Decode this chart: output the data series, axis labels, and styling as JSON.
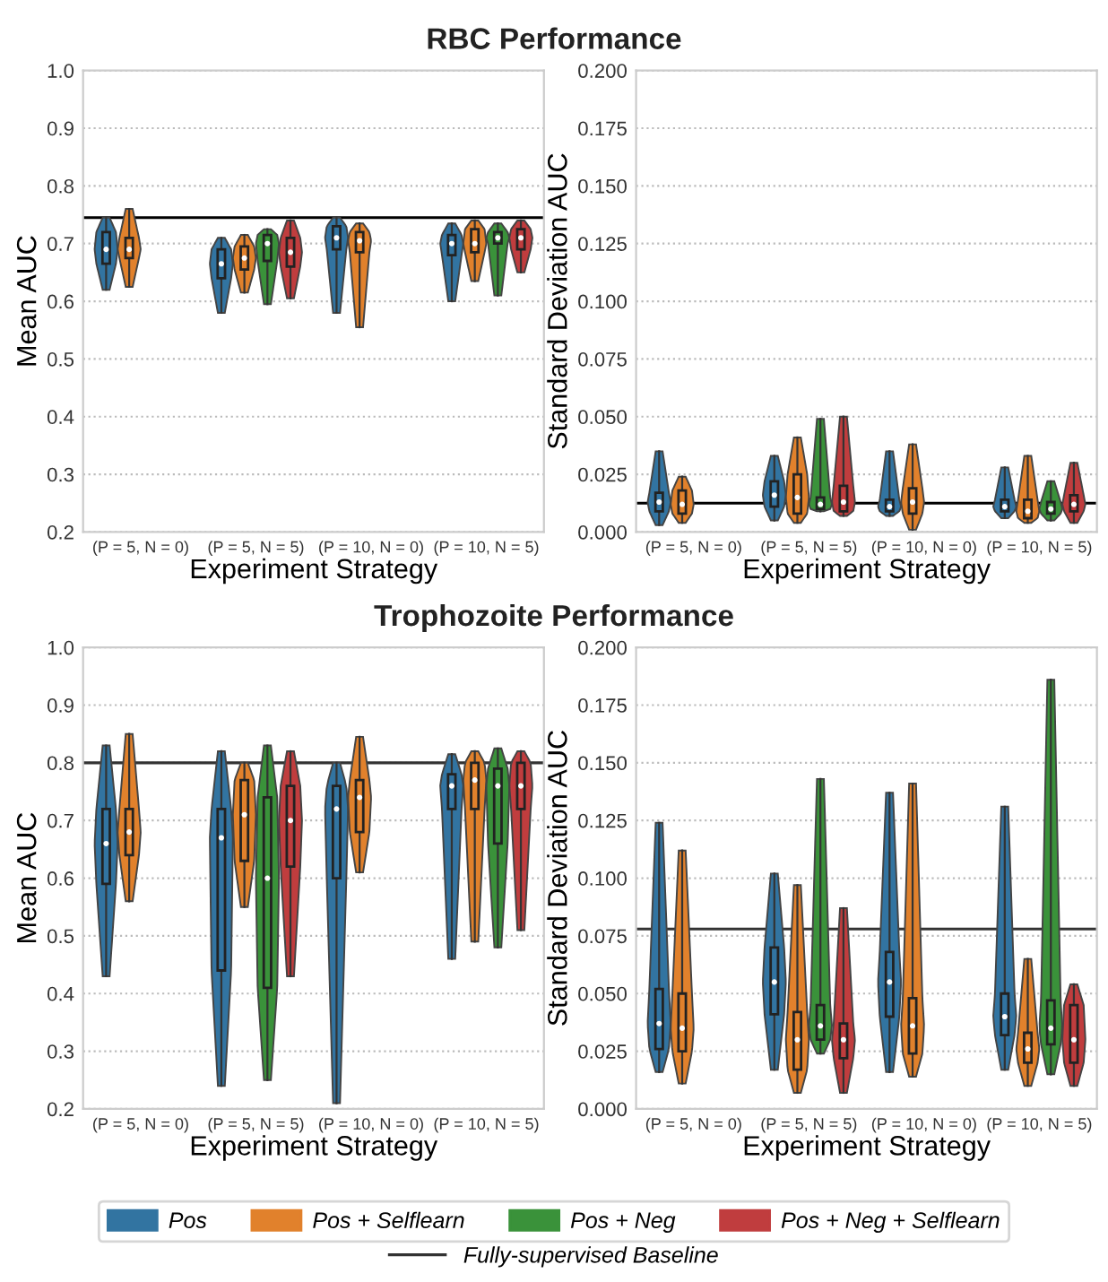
{
  "chart_data": [
    {
      "type": "box",
      "title": "RBC Performance",
      "xlabel": "Experiment Strategy",
      "ylabel": "Mean AUC",
      "categories": [
        "(P = 5, N = 0)",
        "(P = 5, N = 5)",
        "(P = 10, N = 0)",
        "(P = 10, N = 5)"
      ],
      "ylim": [
        0.2,
        1.0
      ],
      "yticks": [
        0.2,
        0.3,
        0.4,
        0.5,
        0.6,
        0.7,
        0.8,
        0.9,
        {
          "value": 1,
          "label": "1.0"
        }
      ],
      "grid": "y",
      "ref_lines": [
        {
          "axis": "y",
          "value": 0.745,
          "color": "#000000"
        }
      ],
      "series": [
        {
          "color": "#3274a1",
          "boxes": [
            {
              "low": 0.62,
              "q1": 0.665,
              "median": 0.69,
              "q3": 0.72,
              "high": 0.745
            },
            {
              "low": 0.58,
              "q1": 0.64,
              "median": 0.665,
              "q3": 0.69,
              "high": 0.71
            },
            {
              "low": 0.58,
              "q1": 0.69,
              "median": 0.71,
              "q3": 0.73,
              "high": 0.745
            },
            {
              "low": 0.6,
              "q1": 0.68,
              "median": 0.7,
              "q3": 0.715,
              "high": 0.735
            }
          ]
        },
        {
          "color": "#e1812c",
          "boxes": [
            {
              "low": 0.625,
              "q1": 0.675,
              "median": 0.69,
              "q3": 0.71,
              "high": 0.76
            },
            {
              "low": 0.615,
              "q1": 0.655,
              "median": 0.675,
              "q3": 0.695,
              "high": 0.715
            },
            {
              "low": 0.555,
              "q1": 0.685,
              "median": 0.705,
              "q3": 0.72,
              "high": 0.735
            },
            {
              "low": 0.635,
              "q1": 0.685,
              "median": 0.7,
              "q3": 0.725,
              "high": 0.74
            }
          ]
        },
        {
          "color": "#3a923a",
          "boxes": [
            null,
            {
              "low": 0.595,
              "q1": 0.67,
              "median": 0.7,
              "q3": 0.715,
              "high": 0.725
            },
            null,
            {
              "low": 0.61,
              "q1": 0.7,
              "median": 0.71,
              "q3": 0.72,
              "high": 0.735
            }
          ]
        },
        {
          "color": "#c03d3e",
          "boxes": [
            null,
            {
              "low": 0.605,
              "q1": 0.66,
              "median": 0.685,
              "q3": 0.71,
              "high": 0.74
            },
            null,
            {
              "low": 0.65,
              "q1": 0.69,
              "median": 0.71,
              "q3": 0.725,
              "high": 0.74
            }
          ]
        }
      ]
    },
    {
      "type": "box",
      "xlabel": "Experiment Strategy",
      "ylabel": "Standard Deviation AUC",
      "categories": [
        "(P = 5, N = 0)",
        "(P = 5, N = 5)",
        "(P = 10, N = 0)",
        "(P = 10, N = 5)"
      ],
      "ylim": [
        0.0,
        0.2
      ],
      "yticks": [
        {
          "value": 0,
          "label": "0.000"
        },
        {
          "value": 0.025,
          "label": "0.025"
        },
        {
          "value": 0.05,
          "label": "0.050"
        },
        {
          "value": 0.075,
          "label": "0.075"
        },
        {
          "value": 0.1,
          "label": "0.100"
        },
        {
          "value": 0.125,
          "label": "0.125"
        },
        {
          "value": 0.15,
          "label": "0.150"
        },
        {
          "value": 0.175,
          "label": "0.175"
        },
        {
          "value": 0.2,
          "label": "0.200"
        }
      ],
      "grid": "y",
      "ref_lines": [
        {
          "axis": "y",
          "value": 0.0125,
          "color": "#000000"
        }
      ],
      "series": [
        {
          "color": "#3274a1",
          "boxes": [
            {
              "low": 0.003,
              "q1": 0.009,
              "median": 0.013,
              "q3": 0.017,
              "high": 0.035
            },
            {
              "low": 0.005,
              "q1": 0.011,
              "median": 0.016,
              "q3": 0.022,
              "high": 0.033
            },
            {
              "low": 0.007,
              "q1": 0.009,
              "median": 0.011,
              "q3": 0.014,
              "high": 0.035
            },
            {
              "low": 0.006,
              "q1": 0.009,
              "median": 0.011,
              "q3": 0.014,
              "high": 0.028
            }
          ]
        },
        {
          "color": "#e1812c",
          "boxes": [
            {
              "low": 0.004,
              "q1": 0.008,
              "median": 0.012,
              "q3": 0.018,
              "high": 0.024
            },
            {
              "low": 0.004,
              "q1": 0.008,
              "median": 0.015,
              "q3": 0.025,
              "high": 0.041
            },
            {
              "low": 0.001,
              "q1": 0.008,
              "median": 0.013,
              "q3": 0.019,
              "high": 0.038
            },
            {
              "low": 0.004,
              "q1": 0.006,
              "median": 0.009,
              "q3": 0.014,
              "high": 0.033
            }
          ]
        },
        {
          "color": "#3a923a",
          "boxes": [
            null,
            {
              "low": 0.009,
              "q1": 0.01,
              "median": 0.012,
              "q3": 0.015,
              "high": 0.049
            },
            null,
            {
              "low": 0.005,
              "q1": 0.008,
              "median": 0.01,
              "q3": 0.013,
              "high": 0.022
            }
          ]
        },
        {
          "color": "#c03d3e",
          "boxes": [
            null,
            {
              "low": 0.007,
              "q1": 0.009,
              "median": 0.013,
              "q3": 0.02,
              "high": 0.05
            },
            null,
            {
              "low": 0.004,
              "q1": 0.009,
              "median": 0.012,
              "q3": 0.016,
              "high": 0.03
            }
          ]
        }
      ]
    },
    {
      "type": "box",
      "title": "Trophozoite Performance",
      "xlabel": "Experiment Strategy",
      "ylabel": "Mean AUC",
      "categories": [
        "(P = 5, N = 0)",
        "(P = 5, N = 5)",
        "(P = 10, N = 0)",
        "(P = 10, N = 5)"
      ],
      "ylim": [
        0.2,
        1.0
      ],
      "yticks": [
        0.2,
        0.3,
        0.4,
        0.5,
        0.6,
        0.7,
        0.8,
        0.9,
        {
          "value": 1,
          "label": "1.0"
        }
      ],
      "grid": "y",
      "ref_lines": [
        {
          "axis": "y",
          "value": 0.8,
          "color": "#333333"
        }
      ],
      "series": [
        {
          "color": "#3274a1",
          "boxes": [
            {
              "low": 0.43,
              "q1": 0.59,
              "median": 0.66,
              "q3": 0.72,
              "high": 0.83
            },
            {
              "low": 0.24,
              "q1": 0.44,
              "median": 0.67,
              "q3": 0.72,
              "high": 0.82
            },
            {
              "low": 0.21,
              "q1": 0.6,
              "median": 0.72,
              "q3": 0.76,
              "high": 0.8
            },
            {
              "low": 0.46,
              "q1": 0.72,
              "median": 0.76,
              "q3": 0.78,
              "high": 0.815
            }
          ]
        },
        {
          "color": "#e1812c",
          "boxes": [
            {
              "low": 0.56,
              "q1": 0.64,
              "median": 0.68,
              "q3": 0.72,
              "high": 0.85
            },
            {
              "low": 0.55,
              "q1": 0.63,
              "median": 0.71,
              "q3": 0.77,
              "high": 0.8
            },
            {
              "low": 0.61,
              "q1": 0.68,
              "median": 0.74,
              "q3": 0.77,
              "high": 0.845
            },
            {
              "low": 0.49,
              "q1": 0.72,
              "median": 0.77,
              "q3": 0.8,
              "high": 0.82
            }
          ]
        },
        {
          "color": "#3a923a",
          "boxes": [
            null,
            {
              "low": 0.25,
              "q1": 0.41,
              "median": 0.6,
              "q3": 0.74,
              "high": 0.83
            },
            null,
            {
              "low": 0.48,
              "q1": 0.66,
              "median": 0.76,
              "q3": 0.79,
              "high": 0.825
            }
          ]
        },
        {
          "color": "#c03d3e",
          "boxes": [
            null,
            {
              "low": 0.43,
              "q1": 0.62,
              "median": 0.7,
              "q3": 0.76,
              "high": 0.82
            },
            null,
            {
              "low": 0.51,
              "q1": 0.72,
              "median": 0.76,
              "q3": 0.8,
              "high": 0.82
            }
          ]
        }
      ]
    },
    {
      "type": "box",
      "xlabel": "Experiment Strategy",
      "ylabel": "Standard Deviation AUC",
      "categories": [
        "(P = 5, N = 0)",
        "(P = 5, N = 5)",
        "(P = 10, N = 0)",
        "(P = 10, N = 5)"
      ],
      "ylim": [
        0.0,
        0.2
      ],
      "yticks": [
        {
          "value": 0,
          "label": "0.000"
        },
        {
          "value": 0.025,
          "label": "0.025"
        },
        {
          "value": 0.05,
          "label": "0.050"
        },
        {
          "value": 0.075,
          "label": "0.075"
        },
        {
          "value": 0.1,
          "label": "0.100"
        },
        {
          "value": 0.125,
          "label": "0.125"
        },
        {
          "value": 0.15,
          "label": "0.150"
        },
        {
          "value": 0.175,
          "label": "0.175"
        },
        {
          "value": 0.2,
          "label": "0.200"
        }
      ],
      "grid": "y",
      "legend": "bottom",
      "ref_lines": [
        {
          "axis": "y",
          "value": 0.078,
          "color": "#333333",
          "label": "Fully-supervised Baseline"
        }
      ],
      "series": [
        {
          "name": "Pos",
          "color": "#3274a1",
          "boxes": [
            {
              "low": 0.016,
              "q1": 0.026,
              "median": 0.037,
              "q3": 0.052,
              "high": 0.124
            },
            {
              "low": 0.017,
              "q1": 0.041,
              "median": 0.055,
              "q3": 0.07,
              "high": 0.102
            },
            {
              "low": 0.016,
              "q1": 0.04,
              "median": 0.055,
              "q3": 0.068,
              "high": 0.137
            },
            {
              "low": 0.017,
              "q1": 0.032,
              "median": 0.04,
              "q3": 0.05,
              "high": 0.131
            }
          ]
        },
        {
          "name": "Pos + Selflearn",
          "color": "#e1812c",
          "boxes": [
            {
              "low": 0.011,
              "q1": 0.025,
              "median": 0.035,
              "q3": 0.05,
              "high": 0.112
            },
            {
              "low": 0.007,
              "q1": 0.017,
              "median": 0.03,
              "q3": 0.042,
              "high": 0.097
            },
            {
              "low": 0.014,
              "q1": 0.024,
              "median": 0.036,
              "q3": 0.048,
              "high": 0.141
            },
            {
              "low": 0.01,
              "q1": 0.02,
              "median": 0.026,
              "q3": 0.033,
              "high": 0.065
            }
          ]
        },
        {
          "name": "Pos + Neg",
          "color": "#3a923a",
          "boxes": [
            null,
            {
              "low": 0.024,
              "q1": 0.03,
              "median": 0.036,
              "q3": 0.045,
              "high": 0.143
            },
            null,
            {
              "low": 0.015,
              "q1": 0.028,
              "median": 0.035,
              "q3": 0.047,
              "high": 0.186
            }
          ]
        },
        {
          "name": "Pos + Neg + Selflearn",
          "color": "#c03d3e",
          "boxes": [
            null,
            {
              "low": 0.007,
              "q1": 0.022,
              "median": 0.03,
              "q3": 0.037,
              "high": 0.087
            },
            null,
            {
              "low": 0.01,
              "q1": 0.02,
              "median": 0.03,
              "q3": 0.045,
              "high": 0.054
            }
          ]
        }
      ]
    }
  ]
}
